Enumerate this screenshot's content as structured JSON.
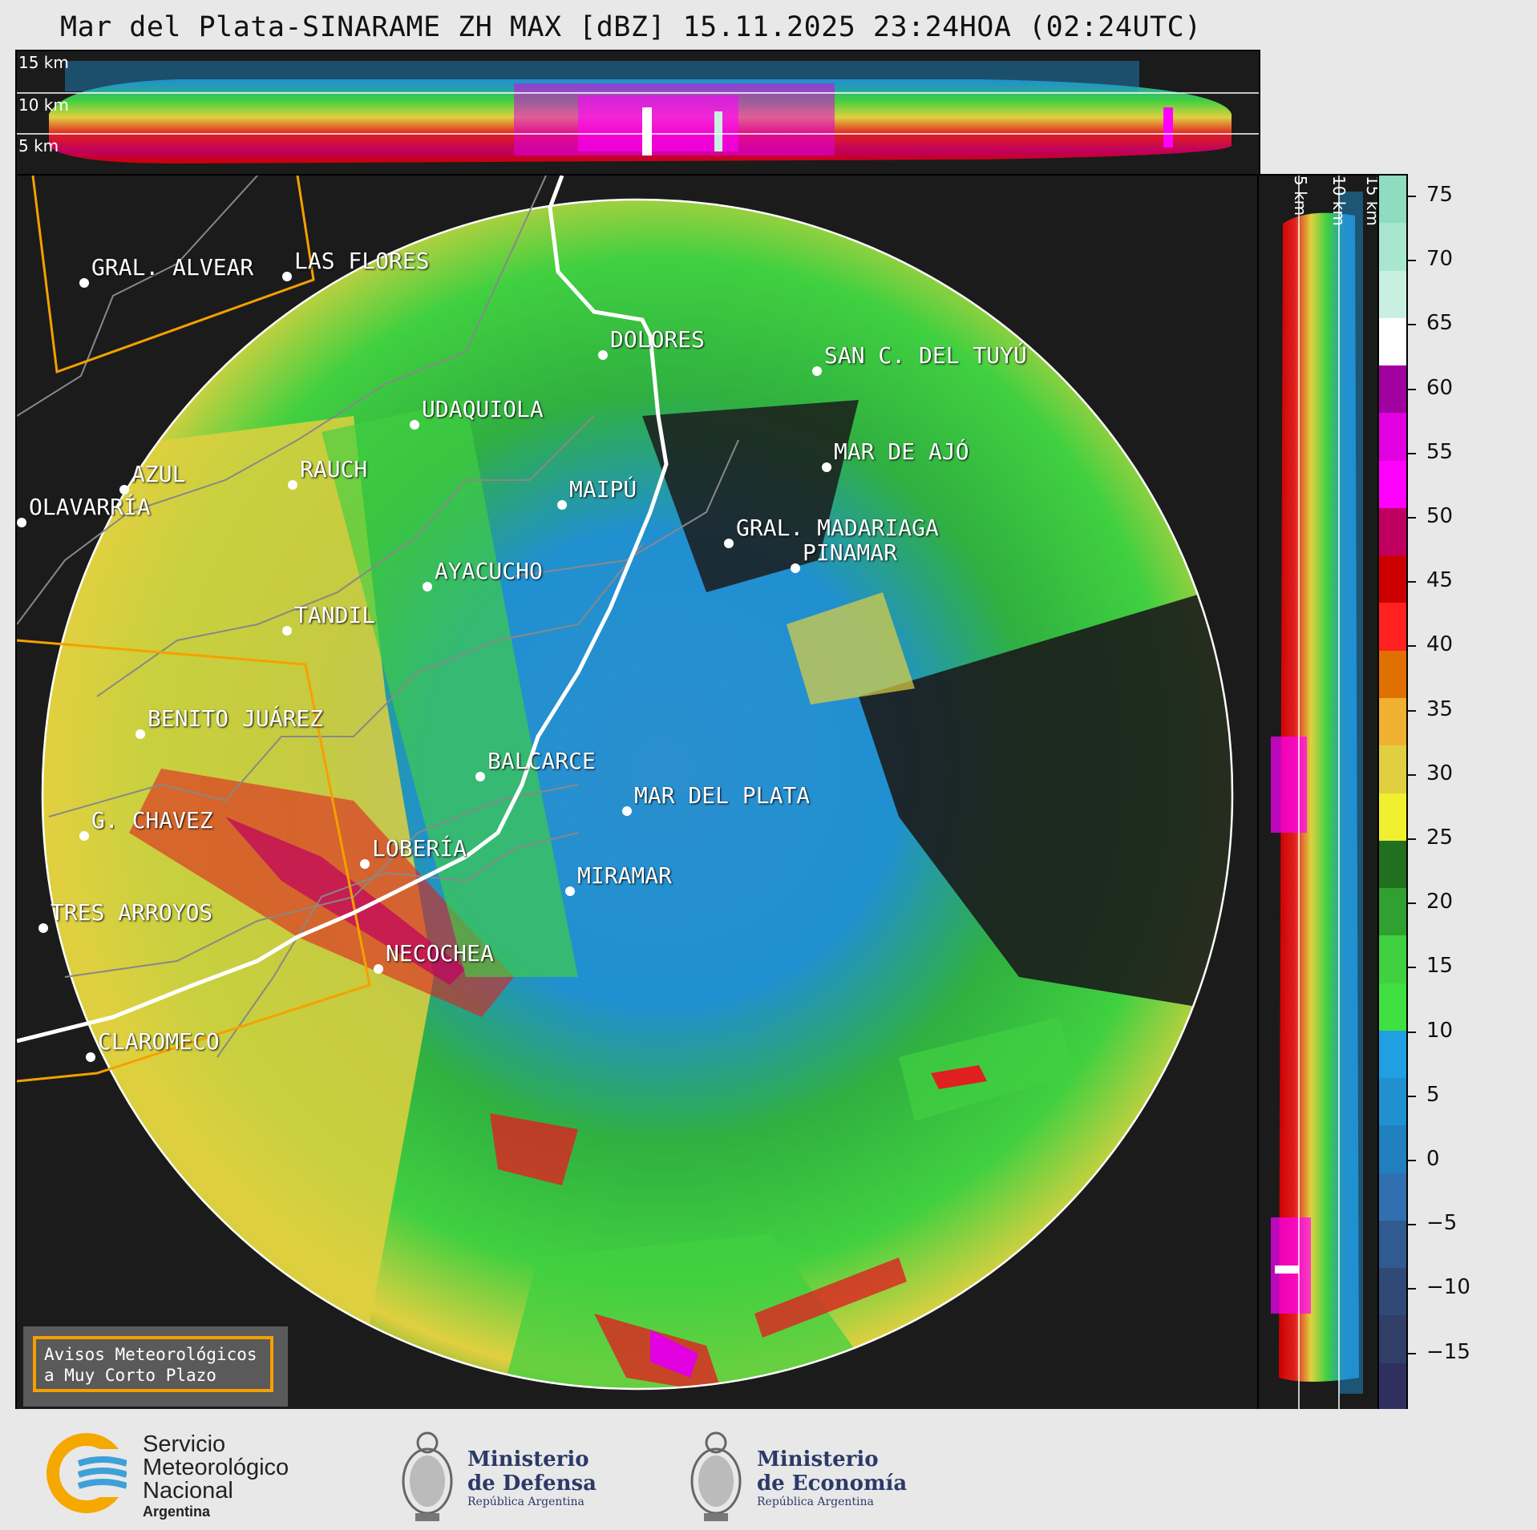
{
  "title": "Mar del Plata-SINARAME ZH MAX [dBZ] 15.11.2025 23:24HOA (02:24UTC)",
  "top_panel": {
    "height_labels": [
      "15 km",
      "10 km",
      "5 km"
    ]
  },
  "right_panel": {
    "height_labels": [
      "5 km",
      "10 km",
      "15 km"
    ]
  },
  "colorbar": {
    "unit": "dBZ",
    "ticks": [
      "75",
      "70",
      "65",
      "60",
      "55",
      "50",
      "45",
      "40",
      "35",
      "30",
      "25",
      "20",
      "15",
      "10",
      "5",
      "0",
      "−5",
      "−10",
      "−15"
    ],
    "colors": [
      "#8fdcc0",
      "#a8e6cf",
      "#c8f0e0",
      "#ffffff",
      "#a000a0",
      "#e000e0",
      "#ff00ff",
      "#c00060",
      "#cc0000",
      "#ff2020",
      "#e07000",
      "#f0b030",
      "#e0d040",
      "#f0f030",
      "#207020",
      "#30a030",
      "#40d040",
      "#40e040",
      "#20a0e0",
      "#2090d0",
      "#2080c0",
      "#3070b0",
      "#305a90",
      "#304a78",
      "#303e68",
      "#303060"
    ]
  },
  "cities": [
    {
      "name": "GRAL. ALVEAR"
    },
    {
      "name": "LAS FLORES"
    },
    {
      "name": "DOLORES"
    },
    {
      "name": "SAN C. DEL TUYÚ"
    },
    {
      "name": "UDAQUIOLA"
    },
    {
      "name": "AZUL"
    },
    {
      "name": "RAUCH"
    },
    {
      "name": "OLAVARRÍA"
    },
    {
      "name": "MAIPÚ"
    },
    {
      "name": "MAR DE AJÓ"
    },
    {
      "name": "GRAL. MADARIAGA"
    },
    {
      "name": "PINAMAR"
    },
    {
      "name": "AYACUCHO"
    },
    {
      "name": "TANDIL"
    },
    {
      "name": "BENITO JUÁREZ"
    },
    {
      "name": "BALCARCE"
    },
    {
      "name": "MAR DEL PLATA"
    },
    {
      "name": "G. CHAVEZ"
    },
    {
      "name": "LOBERÍA"
    },
    {
      "name": "MIRAMAR"
    },
    {
      "name": "TRES ARROYOS"
    },
    {
      "name": "NECOCHEA"
    },
    {
      "name": "CLAROMECO"
    }
  ],
  "avisos": {
    "line1": "Avisos Meteorológicos",
    "line2": "a Muy Corto Plazo"
  },
  "footer": {
    "smn": {
      "line1": "Servicio",
      "line2": "Meteorológico",
      "line3": "Nacional",
      "line4": "Argentina"
    },
    "defensa": {
      "line1": "Ministerio",
      "line2": "de Defensa",
      "line3": "República Argentina"
    },
    "economia": {
      "line1": "Ministerio",
      "line2": "de Economía",
      "line3": "República Argentina"
    }
  }
}
